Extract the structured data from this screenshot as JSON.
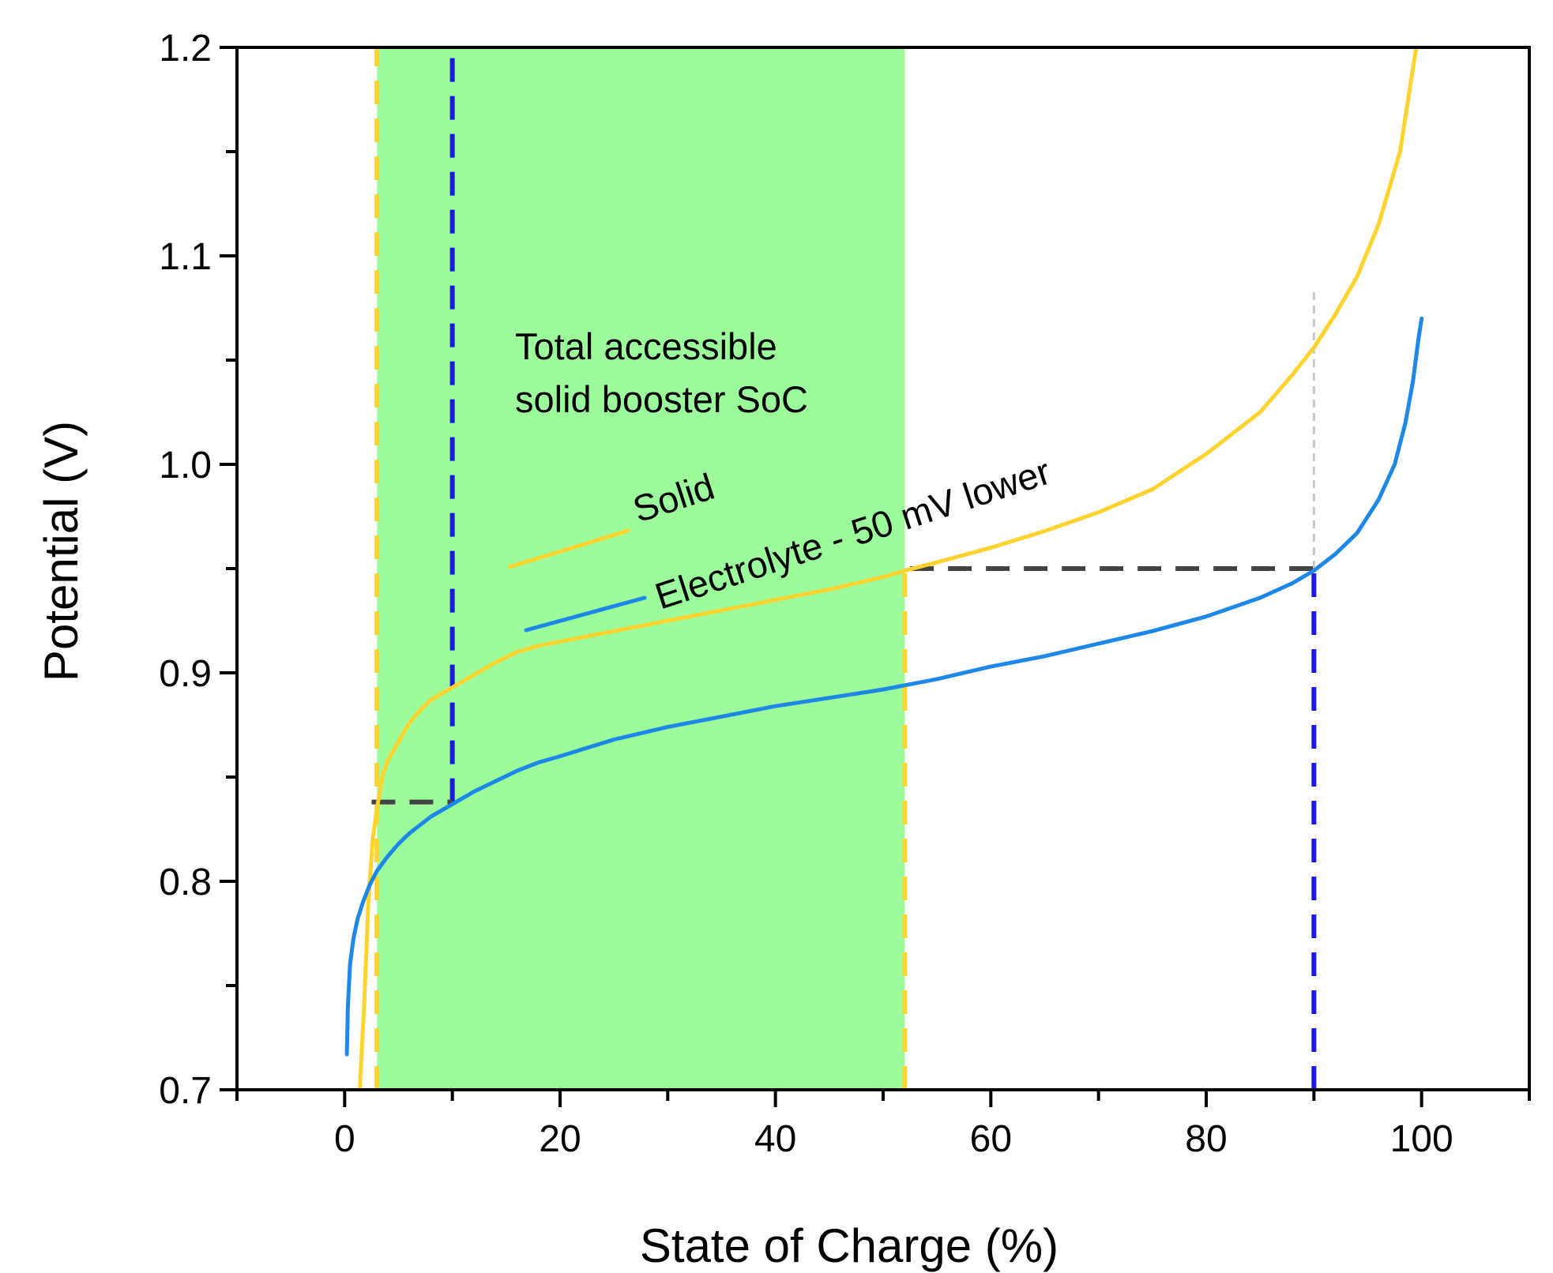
{
  "chart_data": {
    "type": "line",
    "title": "",
    "xlabel": "State of Charge (%)",
    "ylabel": "Potential (V)",
    "xlim": [
      -10,
      110
    ],
    "ylim": [
      0.7,
      1.2
    ],
    "xticks": [
      0,
      20,
      40,
      60,
      80,
      100
    ],
    "xtick_labels": [
      "0",
      "20",
      "40",
      "60",
      "80",
      "100"
    ],
    "yticks": [
      0.7,
      0.8,
      0.9,
      1.0,
      1.1,
      1.2
    ],
    "ytick_labels": [
      "0.7",
      "0.8",
      "0.9",
      "1.0",
      "1.1",
      "1.2"
    ],
    "grid": false,
    "colors": {
      "solid": "#ffd22e",
      "electrolyte": "#1e88e8",
      "shade": "#9cfc9c",
      "blue_dash": "#1a1ae0",
      "gray_dash": "#444444",
      "light_dash": "#c8c8c8"
    },
    "series": [
      {
        "name": "Solid",
        "x": [
          1.4,
          1.8,
          2.2,
          2.6,
          3,
          3.5,
          4,
          5,
          6,
          7,
          8,
          9,
          10,
          12,
          14,
          16,
          18,
          20,
          25,
          30,
          35,
          40,
          45,
          50,
          52,
          55,
          60,
          65,
          70,
          75,
          80,
          85,
          88,
          90,
          92,
          94,
          96,
          98,
          99.5
        ],
        "values": [
          0.7,
          0.74,
          0.79,
          0.82,
          0.835,
          0.85,
          0.858,
          0.867,
          0.876,
          0.882,
          0.887,
          0.89,
          0.893,
          0.899,
          0.905,
          0.91,
          0.913,
          0.915,
          0.92,
          0.925,
          0.93,
          0.935,
          0.94,
          0.946,
          0.949,
          0.953,
          0.96,
          0.968,
          0.977,
          0.988,
          1.005,
          1.025,
          1.043,
          1.056,
          1.072,
          1.09,
          1.115,
          1.15,
          1.2
        ]
      },
      {
        "name": "Electrolyte - 50 mV lower",
        "x": [
          0.2,
          0.3,
          0.5,
          0.8,
          1.2,
          1.7,
          2.3,
          3,
          4,
          5,
          6,
          7,
          8,
          9,
          10,
          12,
          14,
          16,
          18,
          20,
          25,
          30,
          35,
          40,
          45,
          50,
          55,
          60,
          65,
          70,
          75,
          80,
          85,
          88,
          90,
          92,
          94,
          96,
          97.5,
          98.5,
          99.2,
          99.7,
          100
        ],
        "values": [
          0.717,
          0.74,
          0.76,
          0.772,
          0.782,
          0.79,
          0.798,
          0.805,
          0.812,
          0.818,
          0.823,
          0.827,
          0.831,
          0.834,
          0.837,
          0.843,
          0.848,
          0.853,
          0.857,
          0.86,
          0.868,
          0.874,
          0.879,
          0.884,
          0.888,
          0.892,
          0.897,
          0.903,
          0.908,
          0.914,
          0.92,
          0.927,
          0.936,
          0.943,
          0.949,
          0.957,
          0.967,
          0.983,
          1.0,
          1.02,
          1.04,
          1.06,
          1.07
        ]
      }
    ],
    "shaded_region": {
      "x_start": 3,
      "x_end": 52,
      "label_line1": "Total accessible",
      "label_line2": "solid booster SoC"
    },
    "reference_lines": [
      {
        "orientation": "vertical",
        "x": 3,
        "from": 0.7,
        "to": 1.2,
        "color": "solid"
      },
      {
        "orientation": "vertical",
        "x": 52,
        "from": 0.7,
        "to": 0.95,
        "color": "solid"
      },
      {
        "orientation": "vertical",
        "x": 10,
        "from": 0.838,
        "to": 1.2,
        "color": "blue_dash"
      },
      {
        "orientation": "vertical",
        "x": 90,
        "from": 0.7,
        "to": 0.95,
        "color": "blue_dash"
      },
      {
        "orientation": "vertical",
        "x": 90,
        "from": 0.95,
        "to": 1.085,
        "color": "light_dash"
      },
      {
        "orientation": "horizontal",
        "y": 0.838,
        "from": 2.5,
        "to": 10,
        "color": "gray_dash"
      },
      {
        "orientation": "horizontal",
        "y": 0.95,
        "from": 52.5,
        "to": 90,
        "color": "gray_dash"
      }
    ],
    "legend": [
      {
        "label": "Solid",
        "series": "solid",
        "location": "center-left"
      },
      {
        "label": "Electrolyte - 50 mV lower",
        "series": "electrolyte",
        "location": "center-left"
      }
    ]
  }
}
